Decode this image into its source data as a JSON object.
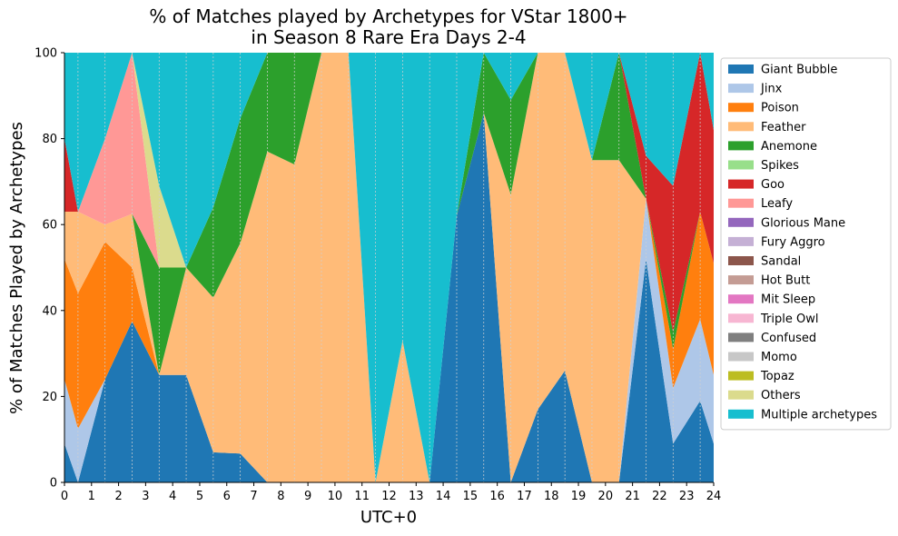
{
  "chart_data": {
    "type": "area",
    "title_lines": [
      "% of Matches played by Archetypes for VStar 1800+",
      "in Season 8 Rare Era Days 2-4"
    ],
    "xlabel": "UTC+0",
    "ylabel": "% of Matches Played by Archetypes",
    "xlim": [
      0,
      24
    ],
    "ylim": [
      0,
      100
    ],
    "xticks": [
      "0",
      "1",
      "2",
      "3",
      "4",
      "5",
      "6",
      "7",
      "8",
      "9",
      "10",
      "11",
      "12",
      "13",
      "14",
      "15",
      "16",
      "17",
      "18",
      "19",
      "20",
      "21",
      "22",
      "23",
      "24"
    ],
    "yticks": [
      "0",
      "20",
      "40",
      "60",
      "80",
      "100"
    ],
    "grid": "vertical dotted",
    "legend_position": "right",
    "x": [
      0,
      0.5,
      1.5,
      2.5,
      3.5,
      4.5,
      5.5,
      6.5,
      7.5,
      8.5,
      9.5,
      10.5,
      11.5,
      12.5,
      13.5,
      14.5,
      15.5,
      16.5,
      17.5,
      18.5,
      19.5,
      20.5,
      21.5,
      22.5,
      23.5,
      24
    ],
    "series": [
      {
        "name": "Giant Bubble",
        "color": "#1f77b4",
        "values": [
          9,
          0,
          24,
          37.5,
          25,
          25,
          7,
          6.7,
          0,
          0,
          0,
          0,
          0,
          0,
          0,
          62,
          86,
          0,
          17,
          26,
          0,
          0,
          52,
          9,
          19,
          9
        ]
      },
      {
        "name": "Jinx",
        "color": "#aec7e8",
        "values": [
          15,
          12.5,
          0,
          0,
          0,
          0,
          0,
          0,
          0,
          0,
          0,
          0,
          0,
          0,
          0,
          0,
          0,
          0,
          0,
          0,
          0,
          0,
          14,
          13,
          19,
          16
        ]
      },
      {
        "name": "Poison",
        "color": "#ff7f0e",
        "values": [
          28,
          31.5,
          32,
          12.5,
          0,
          0,
          0,
          0,
          0,
          0,
          0,
          0,
          0,
          0,
          0,
          0,
          0,
          0,
          0,
          0,
          0,
          0,
          0,
          9,
          25,
          26
        ]
      },
      {
        "name": "Feather",
        "color": "#ffbb78",
        "values": [
          11,
          19,
          4,
          12.5,
          0,
          25,
          36,
          49,
          77,
          74,
          100,
          100,
          0,
          33,
          0,
          0,
          0,
          67,
          83,
          74,
          75,
          75,
          0,
          0,
          0,
          0
        ]
      },
      {
        "name": "Anemone",
        "color": "#2ca02c",
        "values": [
          0,
          0,
          0,
          0,
          25,
          0,
          21,
          29,
          23,
          26,
          0,
          0,
          0,
          0,
          0,
          0,
          14,
          22,
          0,
          0,
          0,
          25,
          0,
          4,
          0,
          0
        ]
      },
      {
        "name": "Spikes",
        "color": "#98df8a",
        "values": [
          0,
          0,
          0,
          0,
          0,
          0,
          0,
          0,
          0,
          0,
          0,
          0,
          0,
          0,
          0,
          0,
          0,
          0,
          0,
          0,
          0,
          0,
          0,
          0,
          0,
          0
        ]
      },
      {
        "name": "Goo",
        "color": "#d62728",
        "values": [
          17,
          0,
          0,
          0,
          0,
          0,
          0,
          0,
          0,
          0,
          0,
          0,
          0,
          0,
          0,
          0,
          0,
          0,
          0,
          0,
          0,
          0,
          10,
          34,
          37,
          31
        ]
      },
      {
        "name": "Leafy",
        "color": "#ff9896",
        "values": [
          0,
          0,
          20,
          37.5,
          0,
          0,
          0,
          0,
          0,
          0,
          0,
          0,
          0,
          0,
          0,
          0,
          0,
          0,
          0,
          0,
          0,
          0,
          0,
          0,
          0,
          0
        ]
      },
      {
        "name": "Glorious Mane",
        "color": "#9467bd",
        "values": [
          0,
          0,
          0,
          0,
          0,
          0,
          0,
          0,
          0,
          0,
          0,
          0,
          0,
          0,
          0,
          0,
          0,
          0,
          0,
          0,
          0,
          0,
          0,
          0,
          0,
          0
        ]
      },
      {
        "name": "Fury Aggro",
        "color": "#c5b0d5",
        "values": [
          0,
          0,
          0,
          0,
          0,
          0,
          0,
          0,
          0,
          0,
          0,
          0,
          0,
          0,
          0,
          0,
          0,
          0,
          0,
          0,
          0,
          0,
          0,
          0,
          0,
          0
        ]
      },
      {
        "name": "Sandal",
        "color": "#8c564b",
        "values": [
          0,
          0,
          0,
          0,
          0,
          0,
          0,
          0,
          0,
          0,
          0,
          0,
          0,
          0,
          0,
          0,
          0,
          0,
          0,
          0,
          0,
          0,
          0,
          0,
          0,
          0
        ]
      },
      {
        "name": "Hot Butt",
        "color": "#c49c94",
        "values": [
          0,
          0,
          0,
          0,
          0,
          0,
          0,
          0,
          0,
          0,
          0,
          0,
          0,
          0,
          0,
          0,
          0,
          0,
          0,
          0,
          0,
          0,
          0,
          0,
          0,
          0
        ]
      },
      {
        "name": "Mit Sleep",
        "color": "#e377c2",
        "values": [
          0,
          0,
          0,
          0,
          0,
          0,
          0,
          0,
          0,
          0,
          0,
          0,
          0,
          0,
          0,
          0,
          0,
          0,
          0,
          0,
          0,
          0,
          0,
          0,
          0,
          0
        ]
      },
      {
        "name": "Triple Owl",
        "color": "#f7b6d2",
        "values": [
          0,
          0,
          0,
          0,
          0,
          0,
          0,
          0,
          0,
          0,
          0,
          0,
          0,
          0,
          0,
          0,
          0,
          0,
          0,
          0,
          0,
          0,
          0,
          0,
          0,
          0
        ]
      },
      {
        "name": "Confused",
        "color": "#7f7f7f",
        "values": [
          0,
          0,
          0,
          0,
          0,
          0,
          0,
          0,
          0,
          0,
          0,
          0,
          0,
          0,
          0,
          0,
          0,
          0,
          0,
          0,
          0,
          0,
          0,
          0,
          0,
          0
        ]
      },
      {
        "name": "Momo",
        "color": "#c7c7c7",
        "values": [
          0,
          0,
          0,
          0,
          0,
          0,
          0,
          0,
          0,
          0,
          0,
          0,
          0,
          0,
          0,
          0,
          0,
          0,
          0,
          0,
          0,
          0,
          0,
          0,
          0,
          0
        ]
      },
      {
        "name": "Topaz",
        "color": "#bcbd22",
        "values": [
          0,
          0,
          0,
          0,
          0,
          0,
          0,
          0,
          0,
          0,
          0,
          0,
          0,
          0,
          0,
          0,
          0,
          0,
          0,
          0,
          0,
          0,
          0,
          0,
          0,
          0
        ]
      },
      {
        "name": "Others",
        "color": "#dbdb8d",
        "values": [
          0,
          0,
          0,
          0,
          19,
          0,
          0,
          0,
          0,
          0,
          0,
          0,
          0,
          0,
          0,
          0,
          0,
          0,
          0,
          0,
          0,
          0,
          0,
          0,
          0,
          0
        ]
      },
      {
        "name": "Multiple archetypes",
        "color": "#17becf",
        "values": [
          20,
          37,
          20,
          0,
          31,
          50,
          36,
          15.3,
          0,
          0,
          0,
          0,
          100,
          67,
          100,
          38,
          0,
          11,
          0,
          0,
          25,
          0,
          24,
          31,
          0,
          18
        ]
      }
    ]
  }
}
